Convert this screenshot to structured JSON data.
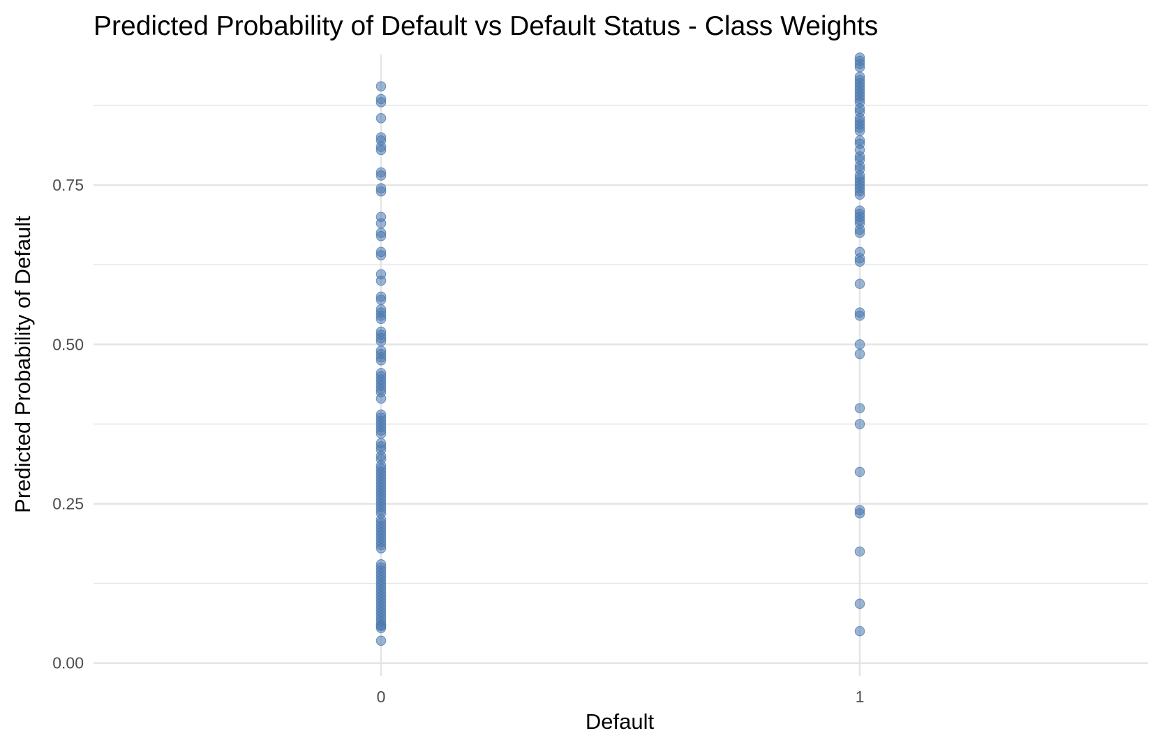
{
  "chart_data": {
    "type": "scatter",
    "title": "Predicted Probability of Default vs Default Status - Class Weights",
    "xlabel": "Default",
    "ylabel": "Predicted Probability of Default",
    "categories": [
      "0",
      "1"
    ],
    "y_ticks": [
      0.0,
      0.25,
      0.5,
      0.75
    ],
    "y_tick_labels": [
      "0.00",
      "0.25",
      "0.50",
      "0.75"
    ],
    "ylim": [
      -0.02,
      0.955
    ],
    "grid": true,
    "legend": "none",
    "point_color": "#4A78AE",
    "series": [
      {
        "category": "0",
        "values": [
          0.905,
          0.885,
          0.88,
          0.855,
          0.825,
          0.82,
          0.81,
          0.805,
          0.77,
          0.765,
          0.745,
          0.74,
          0.7,
          0.69,
          0.675,
          0.67,
          0.645,
          0.64,
          0.61,
          0.6,
          0.575,
          0.57,
          0.555,
          0.55,
          0.545,
          0.54,
          0.52,
          0.515,
          0.51,
          0.505,
          0.49,
          0.485,
          0.48,
          0.475,
          0.455,
          0.45,
          0.445,
          0.44,
          0.435,
          0.43,
          0.425,
          0.415,
          0.39,
          0.385,
          0.38,
          0.375,
          0.37,
          0.365,
          0.36,
          0.345,
          0.34,
          0.335,
          0.325,
          0.32,
          0.31,
          0.305,
          0.3,
          0.295,
          0.29,
          0.285,
          0.28,
          0.275,
          0.27,
          0.265,
          0.26,
          0.255,
          0.25,
          0.245,
          0.24,
          0.235,
          0.225,
          0.22,
          0.215,
          0.21,
          0.205,
          0.2,
          0.195,
          0.19,
          0.185,
          0.18,
          0.155,
          0.15,
          0.145,
          0.14,
          0.135,
          0.13,
          0.125,
          0.12,
          0.115,
          0.11,
          0.105,
          0.1,
          0.095,
          0.09,
          0.085,
          0.08,
          0.075,
          0.07,
          0.065,
          0.06,
          0.058,
          0.055,
          0.035
        ]
      },
      {
        "category": "1",
        "values": [
          0.95,
          0.945,
          0.94,
          0.935,
          0.92,
          0.915,
          0.91,
          0.905,
          0.9,
          0.895,
          0.89,
          0.885,
          0.88,
          0.87,
          0.865,
          0.855,
          0.85,
          0.845,
          0.84,
          0.835,
          0.82,
          0.815,
          0.805,
          0.795,
          0.79,
          0.78,
          0.775,
          0.765,
          0.76,
          0.755,
          0.75,
          0.745,
          0.74,
          0.735,
          0.71,
          0.705,
          0.7,
          0.695,
          0.69,
          0.68,
          0.675,
          0.645,
          0.635,
          0.63,
          0.595,
          0.55,
          0.545,
          0.5,
          0.485,
          0.4,
          0.375,
          0.3,
          0.24,
          0.235,
          0.175,
          0.093,
          0.05
        ]
      }
    ]
  }
}
